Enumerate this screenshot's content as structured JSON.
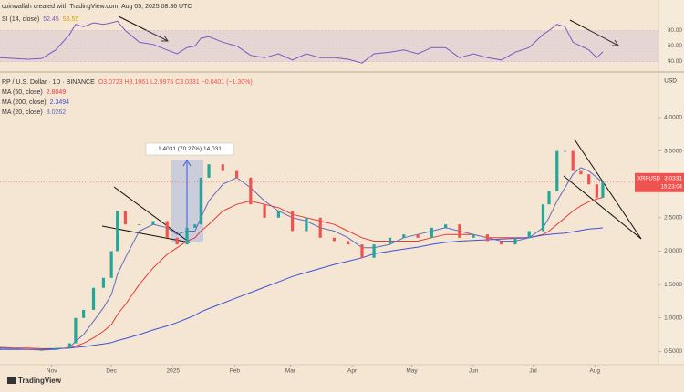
{
  "header": "coinwallah created with TradingView.com, Aug 05, 2025 08:36 UTC",
  "footer": "TradingView",
  "chart_data": [
    {
      "type": "line",
      "title": "SI (14, close)",
      "ma_value": 53.55,
      "ma_color": "#d9a400",
      "x": [
        -26,
        -19,
        -12,
        -5,
        2,
        9,
        12,
        16,
        21,
        26,
        30,
        33,
        37,
        44,
        51,
        58,
        63,
        68,
        72,
        75,
        79,
        86,
        93,
        100,
        107,
        114,
        121,
        128,
        135,
        142,
        149,
        156,
        162,
        170,
        177,
        184,
        191,
        198,
        205,
        212,
        219,
        226,
        233,
        240,
        247,
        250,
        254,
        258,
        262,
        266,
        270,
        274,
        277
      ],
      "series": [
        {
          "name": "RSI",
          "color": "#7e57c2",
          "values": [
            45,
            44,
            43,
            44,
            55,
            75,
            88,
            85,
            90,
            88,
            90,
            92,
            80,
            65,
            62,
            55,
            50,
            58,
            60,
            70,
            72,
            65,
            60,
            48,
            45,
            50,
            42,
            50,
            45,
            45,
            43,
            38,
            50,
            52,
            55,
            50,
            58,
            58,
            45,
            50,
            45,
            42,
            52,
            58,
            75,
            80,
            88,
            85,
            65,
            60,
            55,
            45,
            52.45
          ]
        }
      ],
      "xlim": [
        -26,
        305
      ],
      "ylim": [
        30,
        110
      ],
      "yticks": [
        {
          "value": 40,
          "label": "40.00"
        },
        {
          "value": 60,
          "label": "60.00"
        },
        {
          "value": 80,
          "label": "80.00"
        }
      ],
      "grid": true
    },
    {
      "type": "candle",
      "title": "RP / U.S. Dollar · 1D · BINANCE",
      "ohlc": "O3.0723 H3.1061 L2.9975 C3.0331 −0.0401 (−1.30%)",
      "unit": "USD",
      "symbol": "XRPUSD",
      "countdown": "15:23:04",
      "annotation": "1.4031 (70.27%) 14,031",
      "x": [
        -26,
        -19,
        -12,
        -5,
        2,
        9,
        12,
        16,
        21,
        26,
        30,
        33,
        37,
        44,
        51,
        58,
        63,
        68,
        72,
        75,
        79,
        86,
        93,
        100,
        107,
        114,
        121,
        128,
        135,
        142,
        149,
        156,
        162,
        170,
        177,
        184,
        191,
        198,
        205,
        212,
        219,
        226,
        233,
        240,
        247,
        250,
        254,
        258,
        262,
        266,
        270,
        274,
        277
      ],
      "series": [
        {
          "name": "XRPUSD",
          "up_color": "#26a69a",
          "down_color": "#ef5350",
          "values": [
            0.54,
            0.53,
            0.52,
            0.52,
            0.55,
            0.62,
            1.0,
            1.12,
            1.45,
            1.6,
            2.0,
            2.6,
            2.4,
            2.4,
            2.45,
            2.2,
            2.1,
            2.35,
            2.4,
            3.1,
            3.3,
            3.2,
            3.1,
            2.7,
            2.5,
            2.6,
            2.3,
            2.5,
            2.2,
            2.15,
            2.1,
            1.9,
            2.1,
            2.2,
            2.25,
            2.2,
            2.35,
            2.4,
            2.2,
            2.25,
            2.15,
            2.1,
            2.2,
            2.3,
            2.7,
            2.9,
            3.5,
            3.5,
            3.2,
            3.15,
            3.0,
            2.8,
            3.0331
          ]
        },
        {
          "name": "MA (50, close)",
          "color": "#e53935",
          "values": [
            0.56,
            0.55,
            0.55,
            0.54,
            0.54,
            0.55,
            0.58,
            0.62,
            0.7,
            0.8,
            0.9,
            1.05,
            1.2,
            1.5,
            1.75,
            1.95,
            2.05,
            2.15,
            2.2,
            2.3,
            2.4,
            2.6,
            2.7,
            2.75,
            2.7,
            2.65,
            2.55,
            2.5,
            2.45,
            2.4,
            2.3,
            2.2,
            2.15,
            2.15,
            2.15,
            2.15,
            2.2,
            2.25,
            2.25,
            2.25,
            2.2,
            2.2,
            2.2,
            2.2,
            2.25,
            2.3,
            2.4,
            2.5,
            2.6,
            2.68,
            2.74,
            2.78,
            2.8049
          ]
        },
        {
          "name": "MA (200, close)",
          "color": "#3f51d8",
          "values": [
            0.53,
            0.53,
            0.53,
            0.53,
            0.54,
            0.55,
            0.56,
            0.57,
            0.59,
            0.61,
            0.63,
            0.66,
            0.69,
            0.75,
            0.82,
            0.88,
            0.93,
            0.99,
            1.04,
            1.09,
            1.14,
            1.22,
            1.3,
            1.38,
            1.46,
            1.54,
            1.62,
            1.68,
            1.74,
            1.8,
            1.85,
            1.9,
            1.96,
            2.0,
            2.03,
            2.06,
            2.1,
            2.13,
            2.15,
            2.16,
            2.17,
            2.18,
            2.19,
            2.2,
            2.24,
            2.25,
            2.26,
            2.27,
            2.29,
            2.31,
            2.33,
            2.34,
            2.3494
          ]
        },
        {
          "name": "MA (20, close)",
          "color": "#5c6bc0",
          "values": [
            0.55,
            0.54,
            0.53,
            0.52,
            0.53,
            0.56,
            0.65,
            0.75,
            0.95,
            1.15,
            1.35,
            1.65,
            1.9,
            2.3,
            2.4,
            2.35,
            2.25,
            2.3,
            2.3,
            2.5,
            2.75,
            3.0,
            3.1,
            2.95,
            2.75,
            2.6,
            2.5,
            2.45,
            2.35,
            2.3,
            2.2,
            2.05,
            2.05,
            2.1,
            2.2,
            2.25,
            2.3,
            2.35,
            2.3,
            2.25,
            2.2,
            2.15,
            2.15,
            2.2,
            2.35,
            2.5,
            2.75,
            2.95,
            3.15,
            3.25,
            3.2,
            3.1,
            3.0262
          ]
        }
      ],
      "xlim": [
        -26,
        305
      ],
      "ylim": [
        0.3,
        4.6
      ],
      "yticks": [
        {
          "value": 0.5,
          "label": "0.5000"
        },
        {
          "value": 1,
          "label": "1.0000"
        },
        {
          "value": 1.5,
          "label": "1.5000"
        },
        {
          "value": 2,
          "label": "2.0000"
        },
        {
          "value": 2.5,
          "label": "2.5000"
        },
        {
          "value": 3.5,
          "label": "3.5000"
        },
        {
          "value": 4,
          "label": "4.0000"
        }
      ],
      "xticks": [
        {
          "value": 0,
          "label": "Nov"
        },
        {
          "value": 30,
          "label": "Dec"
        },
        {
          "value": 61,
          "label": "2025"
        },
        {
          "value": 92,
          "label": "Feb"
        },
        {
          "value": 120,
          "label": "Mar"
        },
        {
          "value": 151,
          "label": "Apr"
        },
        {
          "value": 181,
          "label": "May"
        },
        {
          "value": 212,
          "label": "Jun"
        },
        {
          "value": 242,
          "label": "Jul"
        },
        {
          "value": 273,
          "label": "Aug"
        }
      ],
      "grid": false
    }
  ]
}
